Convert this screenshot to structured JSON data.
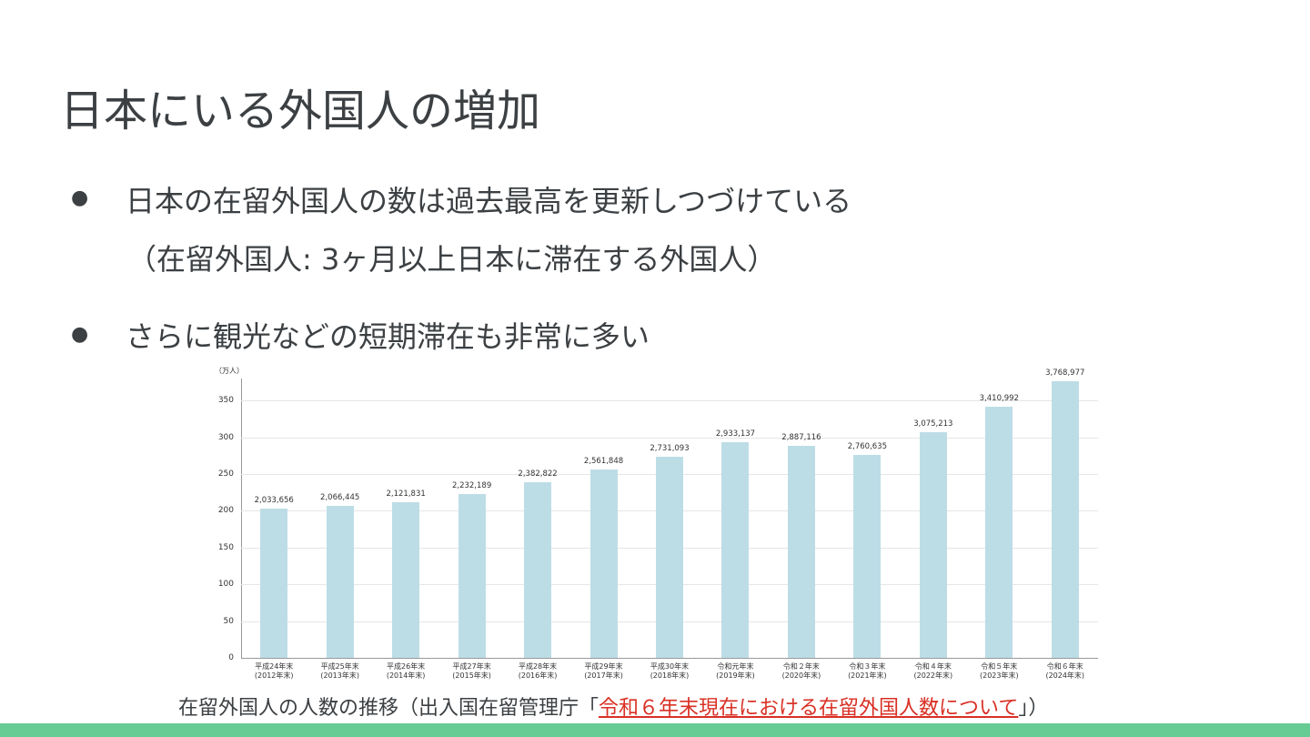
{
  "title": "日本にいる外国人の増加",
  "bullets": [
    {
      "text": "日本の在留外国人の数は過去最高を更新しつづけている",
      "note": "（在留外国人: 3ヶ月以上日本に滞在する外国人）"
    },
    {
      "text": "さらに観光などの短期滞在も非常に多い"
    }
  ],
  "chart_data": {
    "type": "bar",
    "y_label": "（万人）",
    "categories": [
      "平成24年末\n(2012年末)",
      "平成25年末\n(2013年末)",
      "平成26年末\n(2014年末)",
      "平成27年末\n(2015年末)",
      "平成28年末\n(2016年末)",
      "平成29年末\n(2017年末)",
      "平成30年末\n(2018年末)",
      "令和元年末\n(2019年末)",
      "令和２年末\n(2020年末)",
      "令和３年末\n(2021年末)",
      "令和４年末\n(2022年末)",
      "令和５年末\n(2023年末)",
      "令和６年末\n(2024年末)"
    ],
    "values": [
      203.3656,
      206.6445,
      212.1831,
      223.2189,
      238.2822,
      256.1848,
      273.1093,
      293.3137,
      288.7116,
      276.0635,
      307.5213,
      341.0992,
      376.8977
    ],
    "value_labels": [
      "2,033,656",
      "2,066,445",
      "2,121,831",
      "2,232,189",
      "2,382,822",
      "2,561,848",
      "2,731,093",
      "2,933,137",
      "2,887,116",
      "2,760,635",
      "3,075,213",
      "3,410,992",
      "3,768,977"
    ],
    "color": "#bddde6",
    "ylim": [
      0,
      380
    ],
    "yticks": [
      0,
      50,
      100,
      150,
      200,
      250,
      300,
      350
    ],
    "grid": true
  },
  "caption": {
    "text": "在留外国人の人数の推移（出入国在留管理庁「",
    "link": "令和６年末現在における在留外国人数について",
    "after": "」）"
  }
}
